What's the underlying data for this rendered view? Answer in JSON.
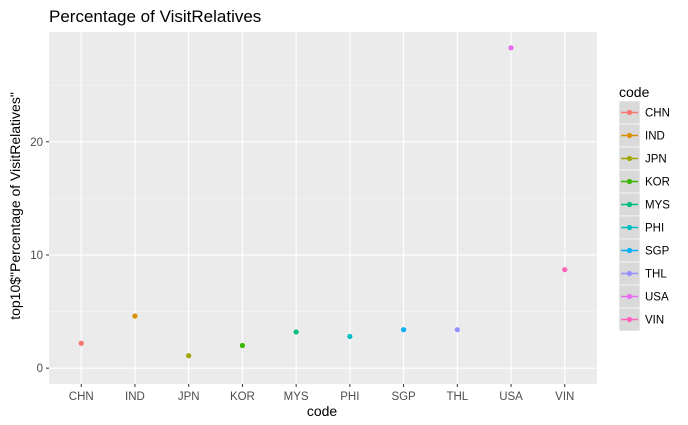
{
  "chart_data": {
    "type": "scatter",
    "title": "Percentage of VisitRelatives",
    "xlabel": "code",
    "ylabel": "top10$\"Percentage of VisitRelatives\"",
    "categories": [
      "CHN",
      "IND",
      "JPN",
      "KOR",
      "MYS",
      "PHI",
      "SGP",
      "THL",
      "USA",
      "VIN"
    ],
    "values": [
      2.2,
      4.6,
      1.1,
      2.0,
      3.2,
      2.8,
      3.4,
      3.4,
      28.3,
      8.7
    ],
    "colors": [
      "#F8766D",
      "#D89000",
      "#A3A500",
      "#39B600",
      "#00BF7D",
      "#00BFC4",
      "#00B0F6",
      "#9590FF",
      "#E76BF3",
      "#FF62BC"
    ],
    "ylim": [
      -1.4,
      29.7
    ],
    "y_ticks": [
      0,
      10,
      20
    ],
    "grid": true,
    "legend": {
      "title": "code",
      "position": "right",
      "entries": [
        "CHN",
        "IND",
        "JPN",
        "KOR",
        "MYS",
        "PHI",
        "SGP",
        "THL",
        "USA",
        "VIN"
      ]
    }
  }
}
